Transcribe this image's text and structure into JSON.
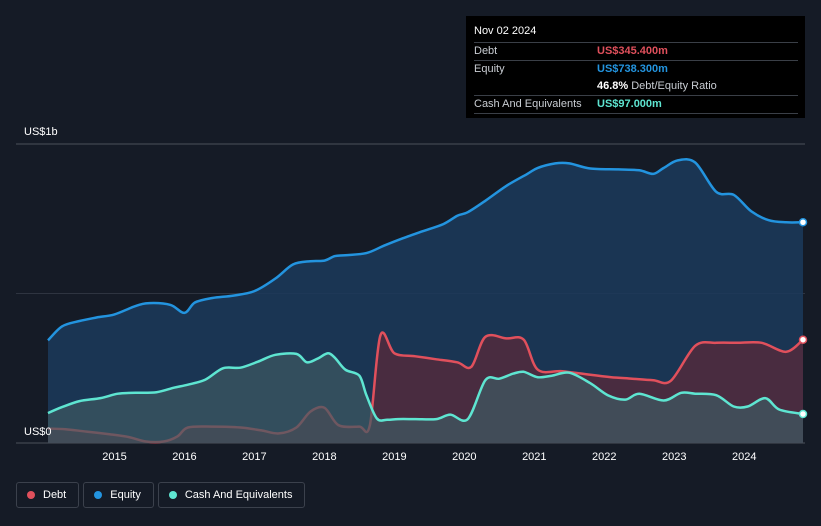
{
  "tooltip": {
    "date": "Nov 02 2024",
    "debt_label": "Debt",
    "debt_value": "US$345.400m",
    "equity_label": "Equity",
    "equity_value": "US$738.300m",
    "ratio_value": "46.8%",
    "ratio_label": "Debt/Equity Ratio",
    "cash_label": "Cash And Equivalents",
    "cash_value": "US$97.000m"
  },
  "legend": {
    "debt": "Debt",
    "equity": "Equity",
    "cash": "Cash And Equivalents"
  },
  "colors": {
    "debt": "#e0505c",
    "equity": "#2394df",
    "cash": "#5ee5d1",
    "background": "#151b26"
  },
  "chart_data": {
    "type": "area",
    "ylabel_top": "US$1b",
    "ylabel_bottom": "US$0",
    "ylim": [
      0,
      1000
    ],
    "x_ticks": [
      "2015",
      "2016",
      "2017",
      "2018",
      "2019",
      "2020",
      "2021",
      "2022",
      "2023",
      "2024"
    ],
    "grid": true,
    "series": [
      {
        "name": "Equity",
        "x": [
          2014.05,
          2014.25,
          2014.5,
          2014.75,
          2015.0,
          2015.3,
          2015.5,
          2015.8,
          2016.0,
          2016.15,
          2016.4,
          2016.7,
          2017.0,
          2017.3,
          2017.55,
          2017.8,
          2018.0,
          2018.15,
          2018.3,
          2018.6,
          2018.85,
          2019.1,
          2019.4,
          2019.7,
          2019.9,
          2020.05,
          2020.3,
          2020.6,
          2020.9,
          2021.05,
          2021.3,
          2021.5,
          2021.8,
          2022.2,
          2022.5,
          2022.7,
          2022.85,
          2023.05,
          2023.3,
          2023.6,
          2023.85,
          2024.1,
          2024.35,
          2024.6,
          2024.84
        ],
        "values": [
          343,
          390,
          408,
          420,
          430,
          458,
          468,
          462,
          435,
          470,
          485,
          493,
          508,
          550,
          597,
          608,
          610,
          625,
          628,
          635,
          660,
          683,
          708,
          732,
          760,
          772,
          810,
          860,
          900,
          920,
          935,
          935,
          918,
          915,
          912,
          900,
          920,
          945,
          938,
          840,
          830,
          775,
          745,
          738,
          738.3
        ]
      },
      {
        "name": "Debt",
        "x": [
          2014.05,
          2014.3,
          2014.6,
          2014.9,
          2015.2,
          2015.45,
          2015.7,
          2015.9,
          2016.05,
          2016.4,
          2016.8,
          2017.1,
          2017.35,
          2017.6,
          2017.8,
          2018.0,
          2018.2,
          2018.5,
          2018.65,
          2018.8,
          2019.0,
          2019.3,
          2019.6,
          2019.9,
          2020.1,
          2020.3,
          2020.6,
          2020.85,
          2021.05,
          2021.4,
          2021.8,
          2022.1,
          2022.4,
          2022.7,
          2022.95,
          2023.3,
          2023.6,
          2023.9,
          2024.25,
          2024.6,
          2024.84
        ],
        "values": [
          48,
          46,
          38,
          30,
          20,
          5,
          5,
          22,
          52,
          55,
          52,
          42,
          32,
          52,
          105,
          118,
          60,
          55,
          60,
          360,
          300,
          290,
          280,
          270,
          255,
          355,
          350,
          345,
          245,
          240,
          228,
          220,
          215,
          210,
          208,
          325,
          335,
          335,
          335,
          305,
          345.4
        ]
      },
      {
        "name": "Cash And Equivalents",
        "x": [
          2014.05,
          2014.25,
          2014.5,
          2014.8,
          2015.05,
          2015.3,
          2015.6,
          2015.85,
          2016.05,
          2016.3,
          2016.55,
          2016.8,
          2017.05,
          2017.3,
          2017.6,
          2017.75,
          2017.9,
          2018.05,
          2018.15,
          2018.3,
          2018.5,
          2018.6,
          2018.75,
          2018.9,
          2019.05,
          2019.3,
          2019.6,
          2019.8,
          2020.05,
          2020.3,
          2020.5,
          2020.7,
          2020.85,
          2021.05,
          2021.25,
          2021.5,
          2021.8,
          2022.05,
          2022.3,
          2022.5,
          2022.85,
          2023.1,
          2023.3,
          2023.6,
          2023.85,
          2024.05,
          2024.3,
          2024.5,
          2024.84
        ],
        "values": [
          100,
          120,
          140,
          150,
          165,
          168,
          170,
          185,
          195,
          212,
          250,
          252,
          272,
          295,
          298,
          270,
          282,
          300,
          285,
          245,
          225,
          160,
          82,
          78,
          80,
          80,
          80,
          95,
          80,
          210,
          215,
          232,
          238,
          220,
          225,
          235,
          200,
          160,
          145,
          165,
          142,
          168,
          165,
          160,
          122,
          122,
          150,
          112,
          97
        ]
      }
    ]
  }
}
